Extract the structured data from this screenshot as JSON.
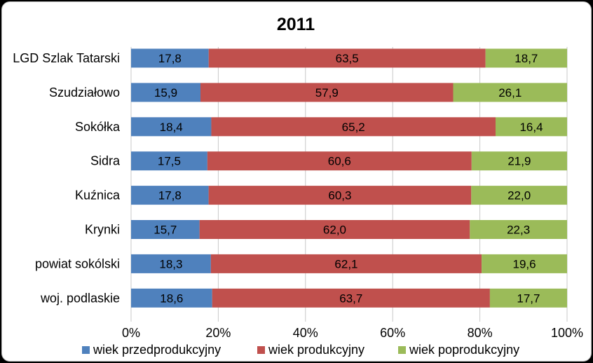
{
  "chart_data": {
    "type": "bar",
    "orientation": "horizontal",
    "stacked": "percent",
    "title": "2011",
    "xlabel": "",
    "ylabel": "",
    "xlim": [
      0,
      100
    ],
    "tick_labels": [
      "0%",
      "20%",
      "40%",
      "60%",
      "80%",
      "100%"
    ],
    "grid": true,
    "legend_position": "bottom",
    "categories": [
      "LGD Szlak Tatarski",
      "Szudziałowo",
      "Sokółka",
      "Sidra",
      "Kuźnica",
      "Krynki",
      "powiat sokólski",
      "woj. podlaskie"
    ],
    "series": [
      {
        "name": "wiek przedprodukcyjny",
        "color": "#4f81bd",
        "values": [
          17.8,
          15.9,
          18.4,
          17.5,
          17.8,
          15.7,
          18.3,
          18.6
        ],
        "labels": [
          "17,8",
          "15,9",
          "18,4",
          "17,5",
          "17,8",
          "15,7",
          "18,3",
          "18,6"
        ]
      },
      {
        "name": "wiek produkcyjny",
        "color": "#c0504d",
        "values": [
          63.5,
          57.9,
          65.2,
          60.6,
          60.3,
          62.0,
          62.1,
          63.7
        ],
        "labels": [
          "63,5",
          "57,9",
          "65,2",
          "60,6",
          "60,3",
          "62,0",
          "62,1",
          "63,7"
        ]
      },
      {
        "name": "wiek poprodukcyjny",
        "color": "#9bbb59",
        "values": [
          18.7,
          26.1,
          16.4,
          21.9,
          22.0,
          22.3,
          19.6,
          17.7
        ],
        "labels": [
          "18,7",
          "26,1",
          "16,4",
          "21,9",
          "22,0",
          "22,3",
          "19,6",
          "17,7"
        ]
      }
    ]
  }
}
